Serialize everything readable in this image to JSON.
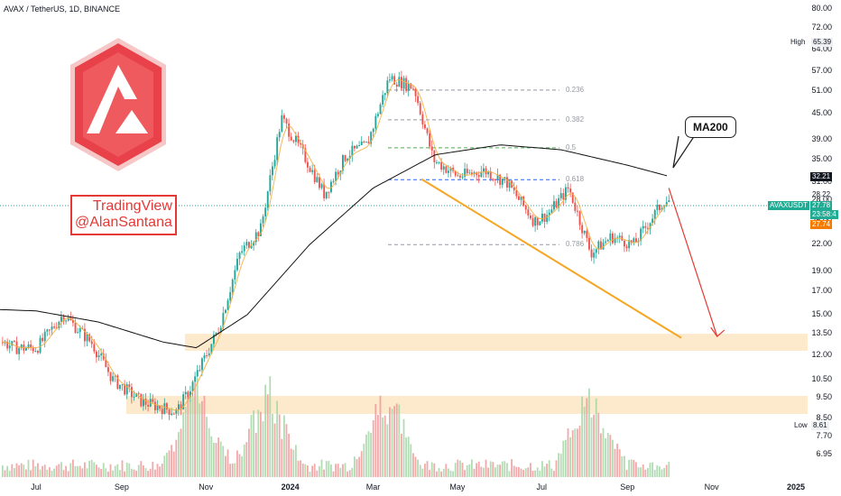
{
  "header": {
    "title": "AVAX / TetherUS, 1D, BINANCE"
  },
  "watermark": {
    "line1": "TradingView",
    "line2": "@AlanSantana"
  },
  "callout": {
    "ma_label": "MA200"
  },
  "colors": {
    "up": "#26a69a",
    "down": "#ef5350",
    "accent": "#f5a623",
    "zone": "#fde5c2",
    "ma200": "#111111",
    "arrow": "#e53935"
  },
  "labels": {
    "high_label": "High",
    "high_value": "65.39",
    "low_label": "Low",
    "low_value": "8.61",
    "price_top": "32.21",
    "price_a": "28.22",
    "symbol": "AVAXUSDT",
    "price_last": "27.78",
    "countdown": "23:58:4",
    "price_b": "27.74"
  },
  "chart_data": {
    "type": "line",
    "title": "AVAX / TetherUS, 1D, BINANCE",
    "scale": "log",
    "ylim": [
      6.5,
      82
    ],
    "y_ticks": [
      "80.00",
      "72.00",
      "64.00",
      "57.00",
      "51.00",
      "45.00",
      "39.00",
      "35.00",
      "31.00",
      "28.00",
      "25.00",
      "22.00",
      "19.00",
      "17.00",
      "15.00",
      "13.50",
      "12.00",
      "10.50",
      "9.50",
      "8.50",
      "7.70",
      "6.95"
    ],
    "x_ticks": [
      "Jul",
      "Sep",
      "Nov",
      "2024",
      "Mar",
      "May",
      "Jul",
      "Sep",
      "Nov",
      "2025"
    ],
    "series": [
      {
        "name": "AVAXUSDT",
        "x": [
          "2023-05-15",
          "2023-06-15",
          "2023-07-01",
          "2023-07-20",
          "2023-08-10",
          "2023-08-25",
          "2023-09-15",
          "2023-10-10",
          "2023-10-20",
          "2023-11-10",
          "2023-11-25",
          "2023-12-10",
          "2023-12-25",
          "2024-01-10",
          "2024-01-25",
          "2024-02-10",
          "2024-02-25",
          "2024-03-12",
          "2024-03-30",
          "2024-04-13",
          "2024-05-01",
          "2024-05-20",
          "2024-06-05",
          "2024-06-25",
          "2024-07-05",
          "2024-07-20",
          "2024-08-05",
          "2024-08-20",
          "2024-09-05",
          "2024-09-20",
          "2024-09-27"
        ],
        "values": [
          14,
          12.5,
          12.5,
          15,
          12.8,
          10.5,
          9.3,
          8.8,
          10,
          14,
          21,
          24,
          44,
          36,
          29,
          36,
          38,
          55,
          52,
          35,
          32,
          33,
          31,
          25,
          26,
          30,
          21,
          23,
          22,
          26,
          28
        ]
      },
      {
        "name": "MA200",
        "x": [
          "2023-05-15",
          "2023-07-01",
          "2023-08-15",
          "2023-10-01",
          "2023-10-25",
          "2023-12-01",
          "2024-01-15",
          "2024-03-01",
          "2024-04-15",
          "2024-06-01",
          "2024-07-15",
          "2024-09-01",
          "2024-10-01"
        ],
        "values": [
          15.5,
          15.3,
          14.4,
          12.9,
          12.5,
          15,
          22,
          30,
          36,
          38,
          37,
          34,
          32
        ]
      }
    ],
    "fibonacci": [
      {
        "label": "0.236",
        "price": 51.3
      },
      {
        "label": "0.382",
        "price": 43.6
      },
      {
        "label": "0.5",
        "price": 37.4
      },
      {
        "label": "0.618",
        "price": 31.4
      },
      {
        "label": "0.786",
        "price": 22.0
      }
    ],
    "zones": [
      [
        12.3,
        13.5
      ],
      [
        8.7,
        9.6
      ]
    ],
    "trendline": {
      "from": {
        "x": "2024-04-05",
        "y": 31.5
      },
      "to": {
        "x": "2024-10-10",
        "y": 13.2
      }
    },
    "projection_arrow": {
      "from": {
        "x": "2024-10-01",
        "y": 30
      },
      "to": {
        "x": "2024-11-05",
        "y": 13.3
      }
    },
    "volume": {
      "peaks": [
        "2023-10-25",
        "2023-12-15",
        "2024-03-10",
        "2024-08-05"
      ]
    }
  }
}
